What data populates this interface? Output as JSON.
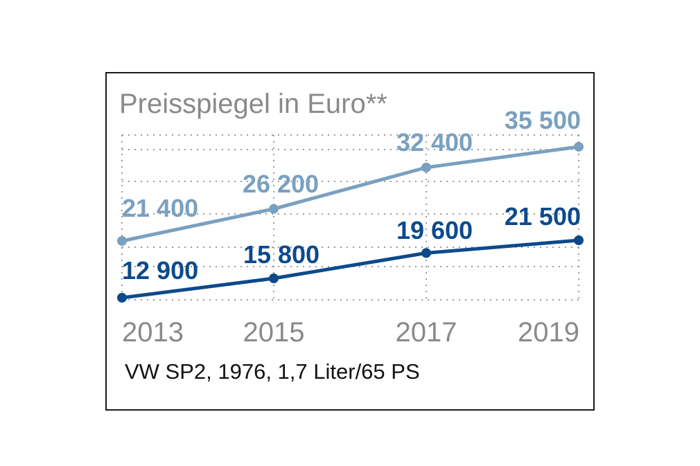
{
  "chart_data": {
    "type": "line",
    "title": "Preisspiegel in Euro**",
    "subtitle": "VW SP2, 1976, 1,7 Liter/65 PS",
    "categories": [
      "2013",
      "2015",
      "2017",
      "2019"
    ],
    "ylim": [
      10000,
      40000
    ],
    "grid": true,
    "series": [
      {
        "values": [
          21400,
          26200,
          32400,
          35500
        ],
        "labels": [
          "21 400",
          "26 200",
          "32 400",
          "35 500"
        ],
        "color": "#7aa0c0"
      },
      {
        "values": [
          12900,
          15800,
          19600,
          21500
        ],
        "labels": [
          "12 900",
          "15 800",
          "19 600",
          "21 500"
        ],
        "color": "#0d4a8c"
      }
    ]
  }
}
